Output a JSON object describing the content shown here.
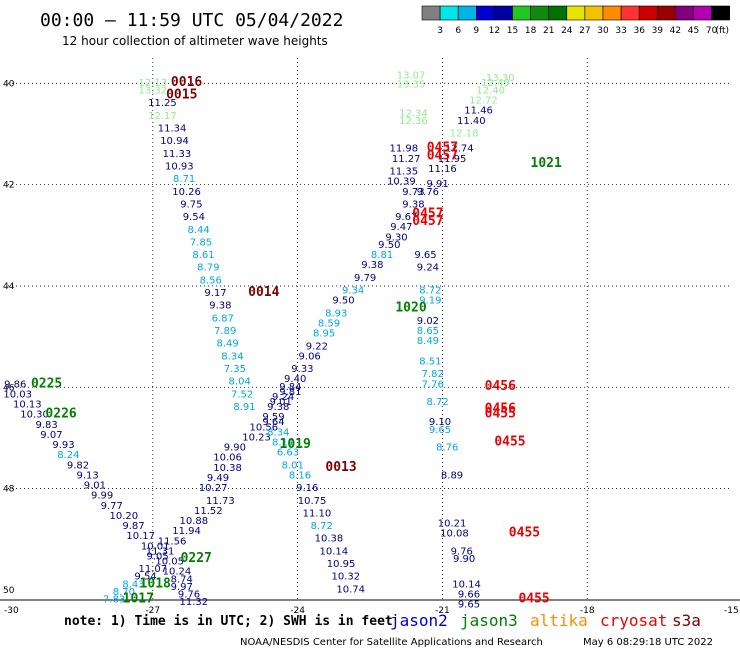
{
  "title": "00:00 — 11:59 UTC 05/04/2022",
  "subtitle": "12 hour collection of altimeter wave heights",
  "color_scale": {
    "unit_label": "(ft)",
    "colors": [
      "#808080",
      "#00e5e5",
      "#00b4e6",
      "#0000d0",
      "#0000a0",
      "#22c722",
      "#118a11",
      "#007200",
      "#e5e500",
      "#f2c200",
      "#ff8c00",
      "#ff3333",
      "#cc0000",
      "#990000",
      "#800080",
      "#b000b0",
      "#000000"
    ],
    "labels": [
      "3",
      "6",
      "9",
      "12",
      "15",
      "18",
      "21",
      "24",
      "27",
      "30",
      "33",
      "36",
      "39",
      "42",
      "45",
      "70"
    ]
  },
  "axes": {
    "y_labels": [
      "40",
      "42",
      "44",
      "46",
      "48",
      "50"
    ],
    "x_labels": [
      "-27",
      "-24",
      "-21",
      "-18"
    ],
    "corner_left": "-30",
    "corner_right": "-15"
  },
  "chart_data": {
    "type": "scatter",
    "description": "Altimeter significant wave heights (ft) along satellite ground tracks",
    "lon_range": [
      -30,
      -15
    ],
    "lat_range": [
      39.5,
      50.2
    ],
    "colors": {
      "jason2": "#0000cc",
      "jason3": "#008000",
      "altika": "#ff8c00",
      "cryosat": "#ee0000",
      "s3a": "#800000",
      "c3": "#90ee90",
      "c4": "#00a8e8",
      "c5": "#00008b"
    },
    "points": [
      [
        "12.13",
        -27.0,
        40.05,
        "c3"
      ],
      [
        "13.32",
        -27.0,
        40.2,
        "c3"
      ],
      [
        "11.25",
        -26.8,
        40.45,
        "c5"
      ],
      [
        "12.17",
        -26.8,
        40.7,
        "c3"
      ],
      [
        "11.34",
        -26.6,
        40.95,
        "c5"
      ],
      [
        "10.94",
        -26.55,
        41.2,
        "c5"
      ],
      [
        "11.33",
        -26.5,
        41.45,
        "c5"
      ],
      [
        "10.93",
        -26.45,
        41.7,
        "c5"
      ],
      [
        "8.71",
        -26.35,
        41.95,
        "c4"
      ],
      [
        "10.26",
        -26.3,
        42.2,
        "c5"
      ],
      [
        "9.75",
        -26.2,
        42.45,
        "c5"
      ],
      [
        "9.54",
        -26.15,
        42.7,
        "c5"
      ],
      [
        "8.44",
        -26.05,
        42.95,
        "c4"
      ],
      [
        "7.85",
        -26.0,
        43.2,
        "c4"
      ],
      [
        "8.61",
        -25.95,
        43.45,
        "c4"
      ],
      [
        "8.79",
        -25.85,
        43.7,
        "c4"
      ],
      [
        "8.56",
        -25.8,
        43.95,
        "c4"
      ],
      [
        "9.17",
        -25.7,
        44.2,
        "c5"
      ],
      [
        "9.38",
        -25.6,
        44.45,
        "c5"
      ],
      [
        "6.87",
        -25.55,
        44.7,
        "c4"
      ],
      [
        "7.89",
        -25.5,
        44.95,
        "c4"
      ],
      [
        "8.49",
        -25.45,
        45.2,
        "c4"
      ],
      [
        "8.34",
        -25.35,
        45.45,
        "c4"
      ],
      [
        "7.35",
        -25.3,
        45.7,
        "c4"
      ],
      [
        "8.04",
        -25.2,
        45.95,
        "c4"
      ],
      [
        "7.52",
        -25.15,
        46.2,
        "c4"
      ],
      [
        "8.91",
        -25.1,
        46.45,
        "c4"
      ],
      [
        "9.01",
        -24.35,
        46.35,
        "c5"
      ],
      [
        "9.81",
        -24.15,
        46.15,
        "c5"
      ],
      [
        "9.40",
        -24.05,
        45.9,
        "c5"
      ],
      [
        "9.33",
        -23.9,
        45.7,
        "c5"
      ],
      [
        "9.06",
        -23.75,
        45.45,
        "c5"
      ],
      [
        "9.22",
        -23.6,
        45.25,
        "c5"
      ],
      [
        "8.95",
        -23.45,
        45.0,
        "c4"
      ],
      [
        "8.59",
        -23.35,
        44.8,
        "c4"
      ],
      [
        "8.93",
        -23.2,
        44.6,
        "c4"
      ],
      [
        "9.50",
        -23.05,
        44.35,
        "c5"
      ],
      [
        "9.34",
        -22.85,
        44.15,
        "c4"
      ],
      [
        "9.79",
        -22.6,
        43.9,
        "c5"
      ],
      [
        "9.38",
        -22.45,
        43.65,
        "c5"
      ],
      [
        "8.81",
        -22.25,
        43.45,
        "c4"
      ],
      [
        "9.50",
        -22.1,
        43.25,
        "c5"
      ],
      [
        "9.30",
        -21.95,
        43.1,
        "c5"
      ],
      [
        "9.47",
        -21.85,
        42.9,
        "c5"
      ],
      [
        "9.67",
        -21.75,
        42.7,
        "c5"
      ],
      [
        "9.38",
        -21.6,
        42.45,
        "c5"
      ],
      [
        "9.73",
        -21.6,
        42.2,
        "c5"
      ],
      [
        "9.91",
        -21.1,
        42.05,
        "c5"
      ],
      [
        "9.76",
        -21.3,
        42.2,
        "c5"
      ],
      [
        "11.16",
        -21.0,
        41.75,
        "c5"
      ],
      [
        "11.95",
        -20.8,
        41.55,
        "c5"
      ],
      [
        "12.74",
        -20.65,
        41.35,
        "c5"
      ],
      [
        "12.18",
        -20.55,
        41.05,
        "c3"
      ],
      [
        "11.40",
        -20.4,
        40.8,
        "c5"
      ],
      [
        "11.46",
        -20.25,
        40.6,
        "c5"
      ],
      [
        "12.72",
        -20.15,
        40.4,
        "c3"
      ],
      [
        "12.40",
        -20.0,
        40.2,
        "c3"
      ],
      [
        "12.49",
        -19.9,
        40.05,
        "c3"
      ],
      [
        "13.30",
        -19.8,
        39.95,
        "c3"
      ],
      [
        "13.07",
        -21.65,
        39.9,
        "c3"
      ],
      [
        "13.35",
        -21.65,
        40.08,
        "c3"
      ],
      [
        "12.34",
        -21.6,
        40.65,
        "c3"
      ],
      [
        "12.36",
        -21.6,
        40.8,
        "c3"
      ],
      [
        "11.98",
        -21.8,
        41.35,
        "c5"
      ],
      [
        "11.27",
        -21.75,
        41.55,
        "c5"
      ],
      [
        "11.35",
        -21.8,
        41.8,
        "c5"
      ],
      [
        "10.39",
        -21.85,
        42.0,
        "c5"
      ],
      [
        "9.65",
        -21.35,
        43.45,
        "c5"
      ],
      [
        "9.24",
        -21.3,
        43.7,
        "c5"
      ],
      [
        "8.72",
        -21.25,
        44.15,
        "c4"
      ],
      [
        "9.19",
        -21.25,
        44.35,
        "c4"
      ],
      [
        "9.02",
        -21.3,
        44.75,
        "c5"
      ],
      [
        "8.65",
        -21.3,
        44.95,
        "c4"
      ],
      [
        "8.49",
        -21.3,
        45.15,
        "c4"
      ],
      [
        "8.51",
        -21.25,
        45.55,
        "c4"
      ],
      [
        "7.82",
        -21.2,
        45.8,
        "c4"
      ],
      [
        "7.76",
        -21.2,
        46.0,
        "c4"
      ],
      [
        "8.72",
        -21.1,
        46.35,
        "c4"
      ],
      [
        "9.10",
        -21.05,
        46.75,
        "c5"
      ],
      [
        "9.65",
        -21.05,
        46.9,
        "c4"
      ],
      [
        "8.76",
        -20.9,
        47.25,
        "c4"
      ],
      [
        "8.89",
        -20.8,
        47.8,
        "c5"
      ],
      [
        "10.21",
        -20.8,
        48.75,
        "c5"
      ],
      [
        "10.08",
        -20.75,
        48.95,
        "c5"
      ],
      [
        "9.76",
        -20.6,
        49.3,
        "c5"
      ],
      [
        "9.90",
        -20.55,
        49.45,
        "c5"
      ],
      [
        "10.14",
        -20.5,
        49.95,
        "c5"
      ],
      [
        "9.66",
        -20.45,
        50.15,
        "c5"
      ],
      [
        "9.65",
        -20.45,
        50.35,
        "c5"
      ],
      [
        "9.86",
        -29.85,
        46.0,
        "c5"
      ],
      [
        "10.03",
        -29.8,
        46.2,
        "c5"
      ],
      [
        "10.13",
        -29.6,
        46.4,
        "c5"
      ],
      [
        "10.30",
        -29.45,
        46.6,
        "c5"
      ],
      [
        "9.83",
        -29.2,
        46.8,
        "c5"
      ],
      [
        "9.07",
        -29.1,
        47.0,
        "c5"
      ],
      [
        "9.93",
        -28.85,
        47.2,
        "c5"
      ],
      [
        "8.24",
        -28.75,
        47.4,
        "c4"
      ],
      [
        "9.82",
        -28.55,
        47.6,
        "c5"
      ],
      [
        "9.13",
        -28.35,
        47.8,
        "c5"
      ],
      [
        "9.01",
        -28.2,
        48.0,
        "c5"
      ],
      [
        "9.99",
        -28.05,
        48.2,
        "c5"
      ],
      [
        "9.77",
        -27.85,
        48.4,
        "c5"
      ],
      [
        "10.20",
        -27.6,
        48.6,
        "c5"
      ],
      [
        "9.87",
        -27.4,
        48.8,
        "c5"
      ],
      [
        "10.17",
        -27.25,
        49.0,
        "c5"
      ],
      [
        "10.01",
        -26.95,
        49.2,
        "c5"
      ],
      [
        "11.56",
        -26.6,
        49.1,
        "c5"
      ],
      [
        "11.94",
        -26.3,
        48.9,
        "c5"
      ],
      [
        "10.88",
        -26.15,
        48.7,
        "c5"
      ],
      [
        "11.52",
        -25.85,
        48.5,
        "c5"
      ],
      [
        "11.73",
        -25.6,
        48.3,
        "c5"
      ],
      [
        "10.27",
        -25.75,
        48.05,
        "c5"
      ],
      [
        "9.49",
        -25.65,
        47.85,
        "c5"
      ],
      [
        "10.38",
        -25.45,
        47.65,
        "c5"
      ],
      [
        "10.06",
        -25.45,
        47.45,
        "c5"
      ],
      [
        "9.90",
        -25.3,
        47.25,
        "c5"
      ],
      [
        "10.23",
        -24.85,
        47.05,
        "c5"
      ],
      [
        "10.56",
        -24.7,
        46.85,
        "c5"
      ],
      [
        "9.59",
        -24.5,
        46.65,
        "c5"
      ],
      [
        "9.38",
        -24.4,
        46.45,
        "c5"
      ],
      [
        "9.24",
        -24.3,
        46.25,
        "c5"
      ],
      [
        "9.84",
        -24.15,
        46.05,
        "c5"
      ],
      [
        "9.64",
        -24.5,
        46.75,
        "c5"
      ],
      [
        "8.34",
        -24.4,
        46.95,
        "c4"
      ],
      [
        "8.11",
        -24.3,
        47.15,
        "c4"
      ],
      [
        "6.63",
        -24.2,
        47.35,
        "c4"
      ],
      [
        "8.01",
        -24.1,
        47.6,
        "c4"
      ],
      [
        "8.16",
        -23.95,
        47.8,
        "c4"
      ],
      [
        "9.16",
        -23.8,
        48.05,
        "c5"
      ],
      [
        "10.75",
        -23.7,
        48.3,
        "c5"
      ],
      [
        "11.10",
        -23.6,
        48.55,
        "c5"
      ],
      [
        "8.72",
        -23.5,
        48.8,
        "c4"
      ],
      [
        "10.38",
        -23.35,
        49.05,
        "c5"
      ],
      [
        "10.14",
        -23.25,
        49.3,
        "c5"
      ],
      [
        "10.95",
        -23.1,
        49.55,
        "c5"
      ],
      [
        "10.32",
        -23.0,
        49.8,
        "c5"
      ],
      [
        "10.74",
        -22.9,
        50.05,
        "c5"
      ],
      [
        "11.31",
        -26.85,
        49.3,
        "c5"
      ],
      [
        "9.05",
        -26.9,
        49.4,
        "c5"
      ],
      [
        "10.05",
        -26.65,
        49.5,
        "c5"
      ],
      [
        "11.07",
        -27.0,
        49.65,
        "c5"
      ],
      [
        "10.24",
        -26.5,
        49.7,
        "c5"
      ],
      [
        "9.54",
        -27.15,
        49.8,
        "c5"
      ],
      [
        "8.74",
        -26.4,
        49.85,
        "c5"
      ],
      [
        "8.43",
        -27.4,
        49.95,
        "c4"
      ],
      [
        "9.97",
        -26.4,
        50.0,
        "c5"
      ],
      [
        "8.70",
        -27.6,
        50.1,
        "c4"
      ],
      [
        "9.76",
        -26.25,
        50.15,
        "c5"
      ],
      [
        "7.83",
        -27.8,
        50.25,
        "c4"
      ],
      [
        "11.32",
        -26.15,
        50.3,
        "c5"
      ]
    ],
    "passes": [
      [
        "0016",
        -26.3,
        40.05,
        "s3a"
      ],
      [
        "0015",
        -26.4,
        40.3,
        "s3a"
      ],
      [
        "0014",
        -24.7,
        44.2,
        "s3a"
      ],
      [
        "0013",
        -23.1,
        47.65,
        "s3a"
      ],
      [
        "1021",
        -18.85,
        41.65,
        "jason3"
      ],
      [
        "1020",
        -21.65,
        44.5,
        "jason3"
      ],
      [
        "1019",
        -24.05,
        47.2,
        "jason3"
      ],
      [
        "1018",
        -26.95,
        49.95,
        "jason3"
      ],
      [
        "1017",
        -27.3,
        50.25,
        "jason3"
      ],
      [
        "0227",
        -26.1,
        49.45,
        "jason3"
      ],
      [
        "0226",
        -28.9,
        46.6,
        "jason3"
      ],
      [
        "0225",
        -29.2,
        46.0,
        "jason3"
      ],
      [
        "0457",
        -21.0,
        41.35,
        "cryosat"
      ],
      [
        "0457",
        -21.0,
        41.5,
        "cryosat"
      ],
      [
        "0457",
        -21.3,
        42.65,
        "cryosat"
      ],
      [
        "0457",
        -21.3,
        42.8,
        "cryosat"
      ],
      [
        "0456",
        -19.8,
        46.05,
        "cryosat"
      ],
      [
        "0456",
        -19.8,
        46.5,
        "cryosat"
      ],
      [
        "0455",
        -19.8,
        46.6,
        "cryosat"
      ],
      [
        "0455",
        -19.6,
        47.15,
        "cryosat"
      ],
      [
        "0455",
        -19.3,
        48.95,
        "cryosat"
      ],
      [
        "0455",
        -19.1,
        50.25,
        "cryosat"
      ]
    ]
  },
  "missions": [
    {
      "name": "jason2",
      "color": "#0000cc"
    },
    {
      "name": "jason3",
      "color": "#008000"
    },
    {
      "name": "altika",
      "color": "#ff8c00"
    },
    {
      "name": "cryosat",
      "color": "#ee0000"
    },
    {
      "name": "s3a",
      "color": "#800000"
    }
  ],
  "note": "note: 1) Time is in UTC; 2) SWH is in feet",
  "footer_left": "NOAA/NESDIS Center for Satellite Applications and Research",
  "footer_right": "May  6 08:29:18 UTC 2022"
}
